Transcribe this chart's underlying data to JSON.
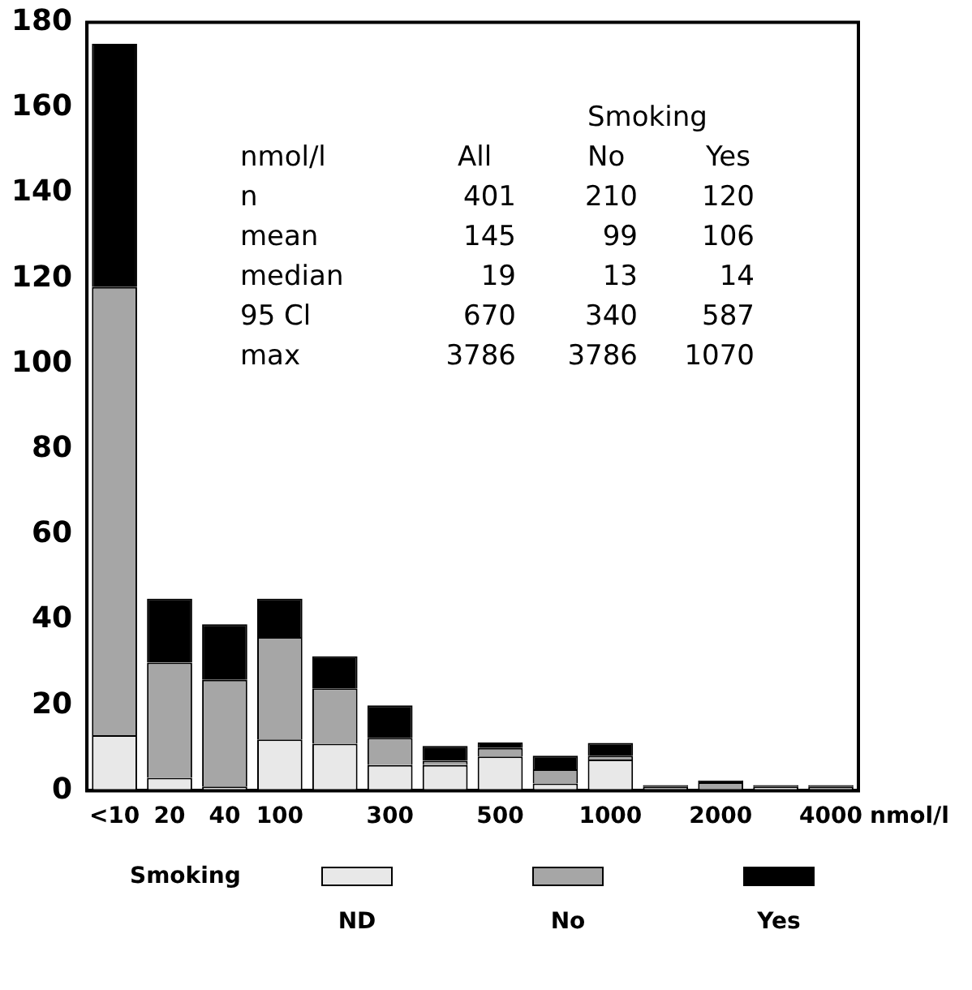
{
  "chart_data": {
    "type": "bar",
    "stacked": true,
    "categories": [
      "<10",
      "20",
      "40",
      "100",
      null,
      "300",
      null,
      "500",
      null,
      "1000",
      null,
      "2000",
      null,
      "4000"
    ],
    "xlabel": "nmol/l",
    "legend_title": "Smoking",
    "legend": "bottom",
    "grid": false,
    "ylim": [
      0,
      180
    ],
    "yticks": [
      0,
      20,
      40,
      60,
      80,
      100,
      120,
      140,
      160,
      180
    ],
    "series": [
      {
        "name": "ND",
        "color": "#e8e8e8",
        "values": [
          13,
          3,
          1,
          12,
          11,
          6,
          6,
          8,
          1.7,
          7.3,
          0,
          0,
          1,
          0
        ]
      },
      {
        "name": "No",
        "color": "#a6a6a6",
        "values": [
          105,
          27,
          25,
          24,
          13,
          6.4,
          1,
          2,
          3.3,
          0.9,
          1,
          2,
          0,
          1
        ]
      },
      {
        "name": "Yes",
        "color": "#000000",
        "values": [
          57,
          15,
          13,
          9,
          7.5,
          7.6,
          3.5,
          1.3,
          3.2,
          3,
          0.3,
          0.4,
          0.3,
          0.3
        ]
      }
    ],
    "annotations": [
      "Smoking",
      "nmol/l",
      "All",
      "No",
      "Yes",
      "n",
      "401",
      "210",
      "120",
      "mean",
      "145",
      "99",
      "106",
      "median",
      "19",
      "13",
      "14",
      "95 Cl",
      "670",
      "340",
      "587",
      "max",
      "3786",
      "3786",
      "1070"
    ]
  }
}
